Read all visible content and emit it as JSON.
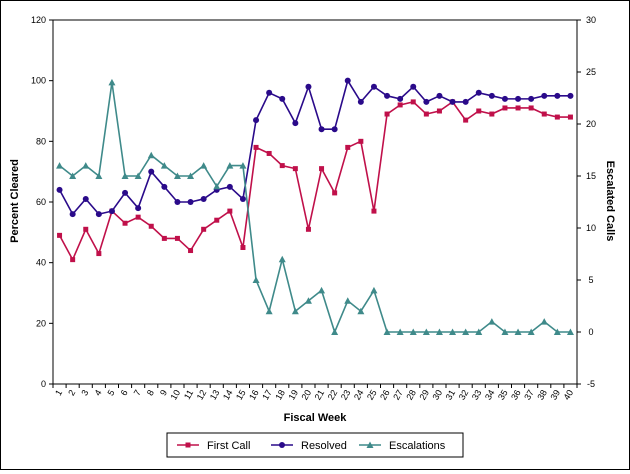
{
  "chart_data": {
    "type": "line",
    "xlabel": "Fiscal Week",
    "ylabel": "Percent Cleared",
    "y2label": "Escalated Calls",
    "x_categories": [
      "1",
      "2",
      "3",
      "4",
      "5",
      "6",
      "7",
      "8",
      "9",
      "10",
      "11",
      "12",
      "13",
      "14",
      "15",
      "16",
      "17",
      "18",
      "19",
      "20",
      "21",
      "22",
      "23",
      "24",
      "25",
      "26",
      "27",
      "28",
      "29",
      "30",
      "31",
      "32",
      "33",
      "34",
      "35",
      "36",
      "37",
      "38",
      "39",
      "40"
    ],
    "ylim": [
      0,
      120
    ],
    "yticks": [
      "0",
      "20",
      "40",
      "60",
      "80",
      "100",
      "120"
    ],
    "y2lim": [
      -5,
      30
    ],
    "y2ticks": [
      "-5",
      "0",
      "5",
      "10",
      "15",
      "20",
      "25",
      "30"
    ],
    "grid": false,
    "legend_position": "bottom",
    "series": [
      {
        "name": "First Call",
        "axis": "left",
        "color": "#c0104a",
        "marker": "square",
        "values": [
          49,
          41,
          51,
          43,
          57,
          53,
          55,
          52,
          48,
          48,
          44,
          51,
          54,
          57,
          45,
          78,
          76,
          72,
          71,
          51,
          71,
          63,
          78,
          80,
          57,
          89,
          92,
          93,
          89,
          90,
          93,
          87,
          90,
          89,
          91,
          91,
          91,
          89,
          88,
          88
        ]
      },
      {
        "name": "Resolved",
        "axis": "left",
        "color": "#2a0a8a",
        "marker": "circle",
        "values": [
          64,
          56,
          61,
          56,
          57,
          63,
          58,
          70,
          65,
          60,
          60,
          61,
          64,
          65,
          61,
          87,
          96,
          94,
          86,
          98,
          84,
          84,
          100,
          93,
          98,
          95,
          94,
          98,
          93,
          95,
          93,
          93,
          96,
          95,
          94,
          94,
          94,
          95,
          95,
          95
        ]
      },
      {
        "name": "Escalations",
        "axis": "right",
        "color": "#3f8a8a",
        "marker": "triangle",
        "values": [
          16,
          15,
          16,
          15,
          24,
          15,
          15,
          17,
          16,
          15,
          15,
          16,
          14,
          16,
          16,
          5,
          2,
          7,
          2,
          3,
          4,
          0,
          3,
          2,
          4,
          0,
          0,
          0,
          0,
          0,
          0,
          0,
          0,
          1,
          0,
          0,
          0,
          1,
          0,
          0
        ]
      }
    ]
  }
}
